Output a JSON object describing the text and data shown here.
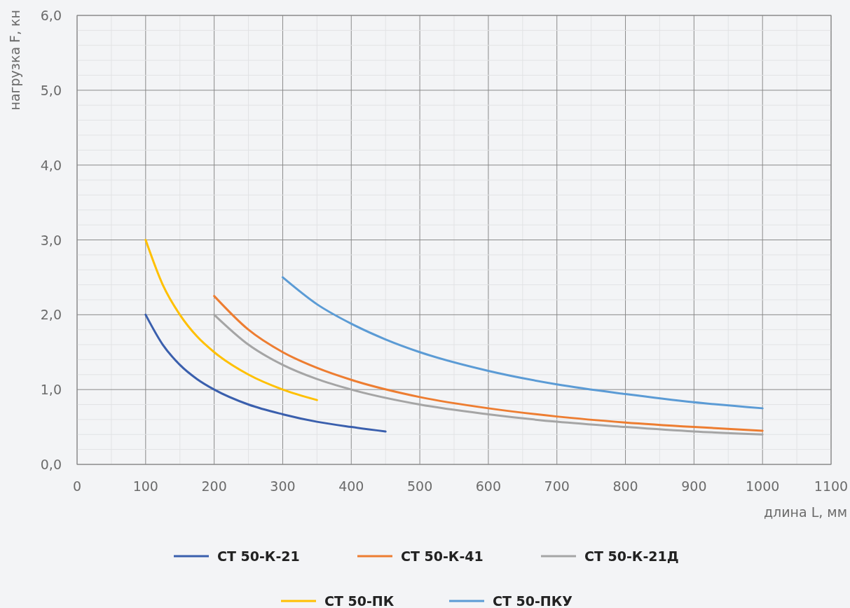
{
  "chart_data": {
    "type": "line",
    "xlabel": "длина L, мм",
    "ylabel": "нагрузка F, кн",
    "xlim": [
      0,
      1100
    ],
    "xticks": [
      0,
      {
        "value": 50,
        "label": null
      },
      100,
      {
        "value": 150,
        "label": null
      },
      200,
      {
        "value": 250,
        "label": null
      },
      300,
      {
        "value": 350,
        "label": null
      },
      400,
      {
        "value": 450,
        "label": null
      },
      500,
      {
        "value": 550,
        "label": null
      },
      600,
      {
        "value": 650,
        "label": null
      },
      700,
      {
        "value": 750,
        "label": null
      },
      800,
      {
        "value": 850,
        "label": null
      },
      900,
      {
        "value": 950,
        "label": null
      },
      1000,
      {
        "value": 1050,
        "label": null
      },
      1100
    ],
    "ylim": [
      0,
      6
    ],
    "yticks": [
      {
        "value": 0,
        "label": "0,0"
      },
      {
        "value": 0.2,
        "label": null
      },
      {
        "value": 0.4,
        "label": null
      },
      {
        "value": 0.6,
        "label": null
      },
      {
        "value": 0.8,
        "label": null
      },
      {
        "value": 1,
        "label": "1,0"
      },
      {
        "value": 1.2,
        "label": null
      },
      {
        "value": 1.4,
        "label": null
      },
      {
        "value": 1.6,
        "label": null
      },
      {
        "value": 1.8,
        "label": null
      },
      {
        "value": 2,
        "label": "2,0"
      },
      {
        "value": 2.2,
        "label": null
      },
      {
        "value": 2.4,
        "label": null
      },
      {
        "value": 2.6,
        "label": null
      },
      {
        "value": 2.8,
        "label": null
      },
      {
        "value": 3,
        "label": "3,0"
      },
      {
        "value": 3.2,
        "label": null
      },
      {
        "value": 3.4,
        "label": null
      },
      {
        "value": 3.6,
        "label": null
      },
      {
        "value": 3.8,
        "label": null
      },
      {
        "value": 4,
        "label": "4,0"
      },
      {
        "value": 4.2,
        "label": null
      },
      {
        "value": 4.4,
        "label": null
      },
      {
        "value": 4.6,
        "label": null
      },
      {
        "value": 4.8,
        "label": null
      },
      {
        "value": 5,
        "label": "5,0"
      },
      {
        "value": 5.2,
        "label": null
      },
      {
        "value": 5.4,
        "label": null
      },
      {
        "value": 5.6,
        "label": null
      },
      {
        "value": 5.8,
        "label": null
      },
      {
        "value": 6,
        "label": "6,0"
      }
    ],
    "grid": true,
    "legend": "bottom",
    "marker": "none",
    "series": [
      {
        "name": "СТ 50-К-21",
        "color": "#3a5fad",
        "x": [
          100,
          125,
          150,
          175,
          200,
          250,
          300,
          350,
          400,
          450
        ],
        "values": [
          2.0,
          1.6,
          1.33,
          1.14,
          1.0,
          0.8,
          0.67,
          0.57,
          0.5,
          0.44
        ]
      },
      {
        "name": "СТ 50-К-41",
        "color": "#ed7d31",
        "x": [
          200,
          250,
          300,
          350,
          400,
          500,
          600,
          700,
          800,
          900,
          1000
        ],
        "values": [
          2.25,
          1.8,
          1.5,
          1.29,
          1.13,
          0.9,
          0.75,
          0.64,
          0.56,
          0.5,
          0.45
        ]
      },
      {
        "name": "СТ 50-К-21Д",
        "color": "#a5a5a5",
        "x": [
          200,
          250,
          300,
          350,
          400,
          500,
          600,
          700,
          800,
          900,
          1000
        ],
        "values": [
          2.0,
          1.6,
          1.33,
          1.14,
          1.0,
          0.8,
          0.67,
          0.57,
          0.5,
          0.44,
          0.4
        ]
      },
      {
        "name": "СТ 50-ПК",
        "color": "#ffc000",
        "x": [
          100,
          125,
          150,
          175,
          200,
          250,
          300,
          350
        ],
        "values": [
          3.0,
          2.4,
          2.0,
          1.71,
          1.5,
          1.2,
          1.0,
          0.86
        ]
      },
      {
        "name": "СТ 50-ПКУ",
        "color": "#5b9bd5",
        "x": [
          300,
          350,
          400,
          450,
          500,
          600,
          700,
          800,
          900,
          1000
        ],
        "values": [
          2.5,
          2.14,
          1.88,
          1.67,
          1.5,
          1.25,
          1.07,
          0.94,
          0.83,
          0.75
        ]
      }
    ]
  }
}
